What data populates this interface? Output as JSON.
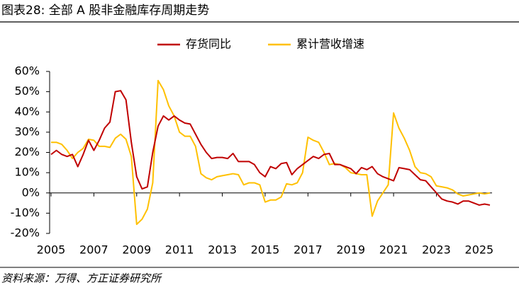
{
  "chart_data": {
    "type": "line",
    "title": "图表28: 全部 A 股非金融库存周期走势",
    "source": "资料来源：万得、方正证券研究所",
    "x": [
      2005,
      2005.25,
      2005.5,
      2005.75,
      2006,
      2006.25,
      2006.5,
      2006.75,
      2007,
      2007.25,
      2007.5,
      2007.75,
      2008,
      2008.25,
      2008.5,
      2008.75,
      2009,
      2009.25,
      2009.5,
      2009.75,
      2010,
      2010.25,
      2010.5,
      2010.75,
      2011,
      2011.25,
      2011.5,
      2011.75,
      2012,
      2012.25,
      2012.5,
      2012.75,
      2013,
      2013.25,
      2013.5,
      2013.75,
      2014,
      2014.25,
      2014.5,
      2014.75,
      2015,
      2015.25,
      2015.5,
      2015.75,
      2016,
      2016.25,
      2016.5,
      2016.75,
      2017,
      2017.25,
      2017.5,
      2017.75,
      2018,
      2018.25,
      2018.5,
      2018.75,
      2019,
      2019.25,
      2019.5,
      2019.75,
      2020,
      2020.25,
      2020.5,
      2020.75,
      2021,
      2021.25,
      2021.5,
      2021.75,
      2022,
      2022.25,
      2022.5,
      2022.75,
      2023,
      2023.25,
      2023.5,
      2023.75,
      2024,
      2024.25,
      2024.5,
      2024.75,
      2025,
      2025.25,
      2025.5
    ],
    "series": [
      {
        "name": "存货同比",
        "color": "#c00000",
        "values": [
          19,
          21,
          19,
          18,
          19,
          13,
          19,
          26,
          21,
          26,
          32,
          35,
          50,
          50.5,
          46,
          25,
          8,
          2,
          3,
          20,
          33,
          38,
          36,
          38,
          36,
          34.5,
          34,
          29,
          24,
          20,
          17,
          17.5,
          17.5,
          17,
          19.5,
          15.5,
          15.5,
          15.5,
          14,
          10,
          8,
          13,
          12,
          14.5,
          15,
          9,
          12,
          14,
          16,
          18,
          17,
          19,
          19.5,
          14,
          14,
          13,
          12,
          9.5,
          12.5,
          11.5,
          13,
          9.5,
          8,
          7,
          6,
          12.5,
          12,
          11.5,
          9,
          6.5,
          6,
          3,
          0,
          -3,
          -4,
          -4.5,
          -5.5,
          -4,
          -4,
          -5,
          -6,
          -5.5,
          -6
        ]
      },
      {
        "name": "累计营收增速",
        "color": "#ffc000",
        "values": [
          25,
          25,
          24,
          21,
          17,
          20,
          22,
          26.5,
          26,
          23,
          23,
          22.5,
          27,
          29,
          26.5,
          18,
          -15.5,
          -13,
          -8,
          5,
          55.5,
          51,
          43,
          38,
          30,
          28,
          28,
          23,
          9.5,
          7.5,
          6.5,
          8,
          8.5,
          9,
          9.5,
          9,
          4,
          5,
          5,
          4,
          -4.5,
          -3.5,
          -3.5,
          -2,
          4.5,
          4,
          5,
          10,
          27.5,
          26,
          25,
          20,
          14,
          14.5,
          14,
          12.5,
          10,
          9.5,
          9,
          9,
          -11.5,
          -4,
          0,
          4,
          39.5,
          32,
          27,
          21,
          13,
          10,
          9.5,
          8,
          3.5,
          3,
          2.5,
          1.5,
          -0.5,
          -1.5,
          -1,
          -0.5,
          0,
          -0.5,
          0
        ]
      }
    ],
    "xlim": [
      2005,
      2025.6
    ],
    "xticks": [
      2005,
      2007,
      2009,
      2011,
      2013,
      2015,
      2017,
      2019,
      2021,
      2023,
      2025
    ],
    "ylim": [
      -20,
      60
    ],
    "yticks": [
      {
        "value": -20,
        "label": "-20%"
      },
      {
        "value": -10,
        "label": "-10%"
      },
      {
        "value": 0,
        "label": "0%"
      },
      {
        "value": 10,
        "label": "10%"
      },
      {
        "value": 20,
        "label": "20%"
      },
      {
        "value": 30,
        "label": "30%"
      },
      {
        "value": 40,
        "label": "40%"
      },
      {
        "value": 50,
        "label": "50%"
      },
      {
        "value": 60,
        "label": "60%"
      }
    ],
    "grid": false
  }
}
